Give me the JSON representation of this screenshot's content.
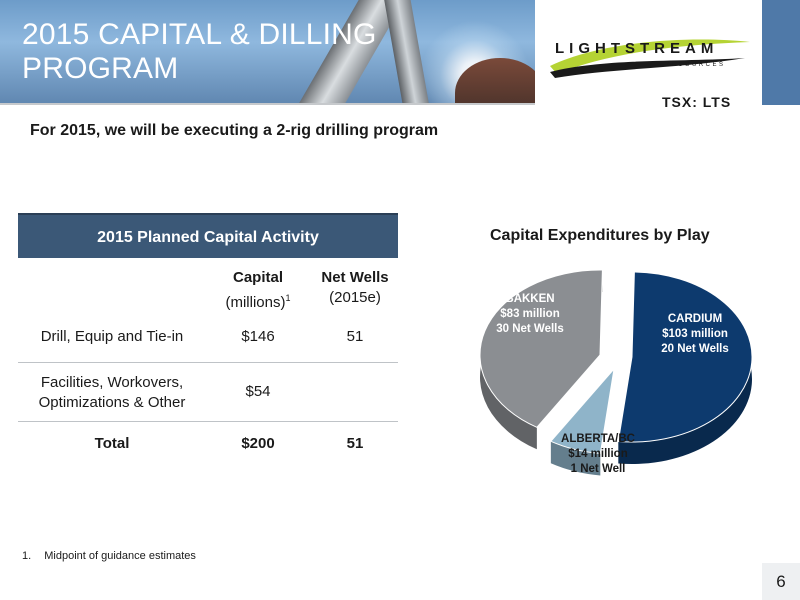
{
  "header": {
    "title_line1": "2015 CAPITAL & DILLING",
    "title_line2": "PROGRAM"
  },
  "logo": {
    "name": "LIGHTSTREAM",
    "sub": "RESOURCES",
    "ticker": "TSX: LTS",
    "swoosh_color": "#b5d334"
  },
  "subtitle": "For 2015, we will be executing a 2-rig drilling program",
  "table": {
    "title": "2015 Planned Capital Activity",
    "col_capital": "Capital",
    "col_capital_unit": "(millions)",
    "col_capital_footnote": "1",
    "col_wells": "Net Wells",
    "col_wells_unit": "(2015e)",
    "rows": [
      {
        "label": "Drill, Equip and Tie-in",
        "capital": "$146",
        "wells": "51"
      },
      {
        "label_line1": "Facilities, Workovers,",
        "label_line2": "Optimizations & Other",
        "capital": "$54",
        "wells": ""
      }
    ],
    "total": {
      "label": "Total",
      "capital": "$200",
      "wells": "51"
    }
  },
  "chart_data": {
    "type": "pie",
    "title": "Capital Expenditures by Play",
    "categories": [
      "CARDIUM",
      "ALBERTA/BC",
      "BAKKEN"
    ],
    "values": [
      103,
      14,
      83
    ],
    "unit": "$ million",
    "net_wells": [
      20,
      1,
      30
    ],
    "slices": [
      {
        "name": "CARDIUM",
        "amount": "$103 million",
        "wells": "20 Net Wells",
        "color": "#0d3a6e"
      },
      {
        "name": "ALBERTA/BC",
        "amount": "$14 million",
        "wells": "1 Net Well",
        "color": "#8fb4c9"
      },
      {
        "name": "BAKKEN",
        "amount": "$83 million",
        "wells": "30 Net Wells",
        "color": "#8b8e92"
      }
    ]
  },
  "footnote": {
    "number": "1.",
    "text": "Midpoint of guidance estimates"
  },
  "page_number": "6",
  "colors": {
    "header_blue": "#3b5877",
    "accent_blue": "#4f79a8"
  }
}
